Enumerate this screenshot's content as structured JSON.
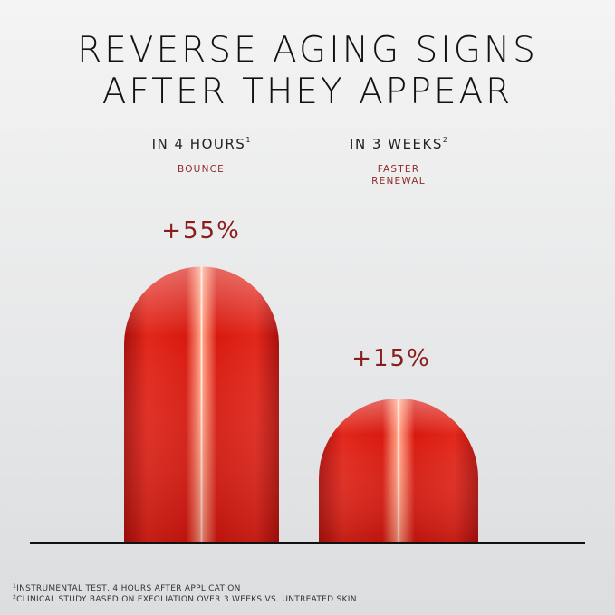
{
  "header": {
    "title": [
      "REVERSE AGING SIGNS",
      "AFTER THEY APPEAR"
    ]
  },
  "columns": [
    {
      "heading": "IN 4 HOURS",
      "note_mark": "1",
      "label": [
        "BOUNCE"
      ],
      "value": "+55%"
    },
    {
      "heading": "IN 3 WEEKS",
      "note_mark": "2",
      "label": [
        "FASTER",
        "RENEWAL"
      ],
      "value": "+15%"
    }
  ],
  "footnotes": [
    {
      "mark": "1",
      "text": "INSTRUMENTAL TEST, 4 HOURS AFTER APPLICATION"
    },
    {
      "mark": "2",
      "text": "CLINICAL STUDY BASED ON EXFOLIATION OVER 3 WEEKS VS. UNTREATED SKIN"
    }
  ]
}
